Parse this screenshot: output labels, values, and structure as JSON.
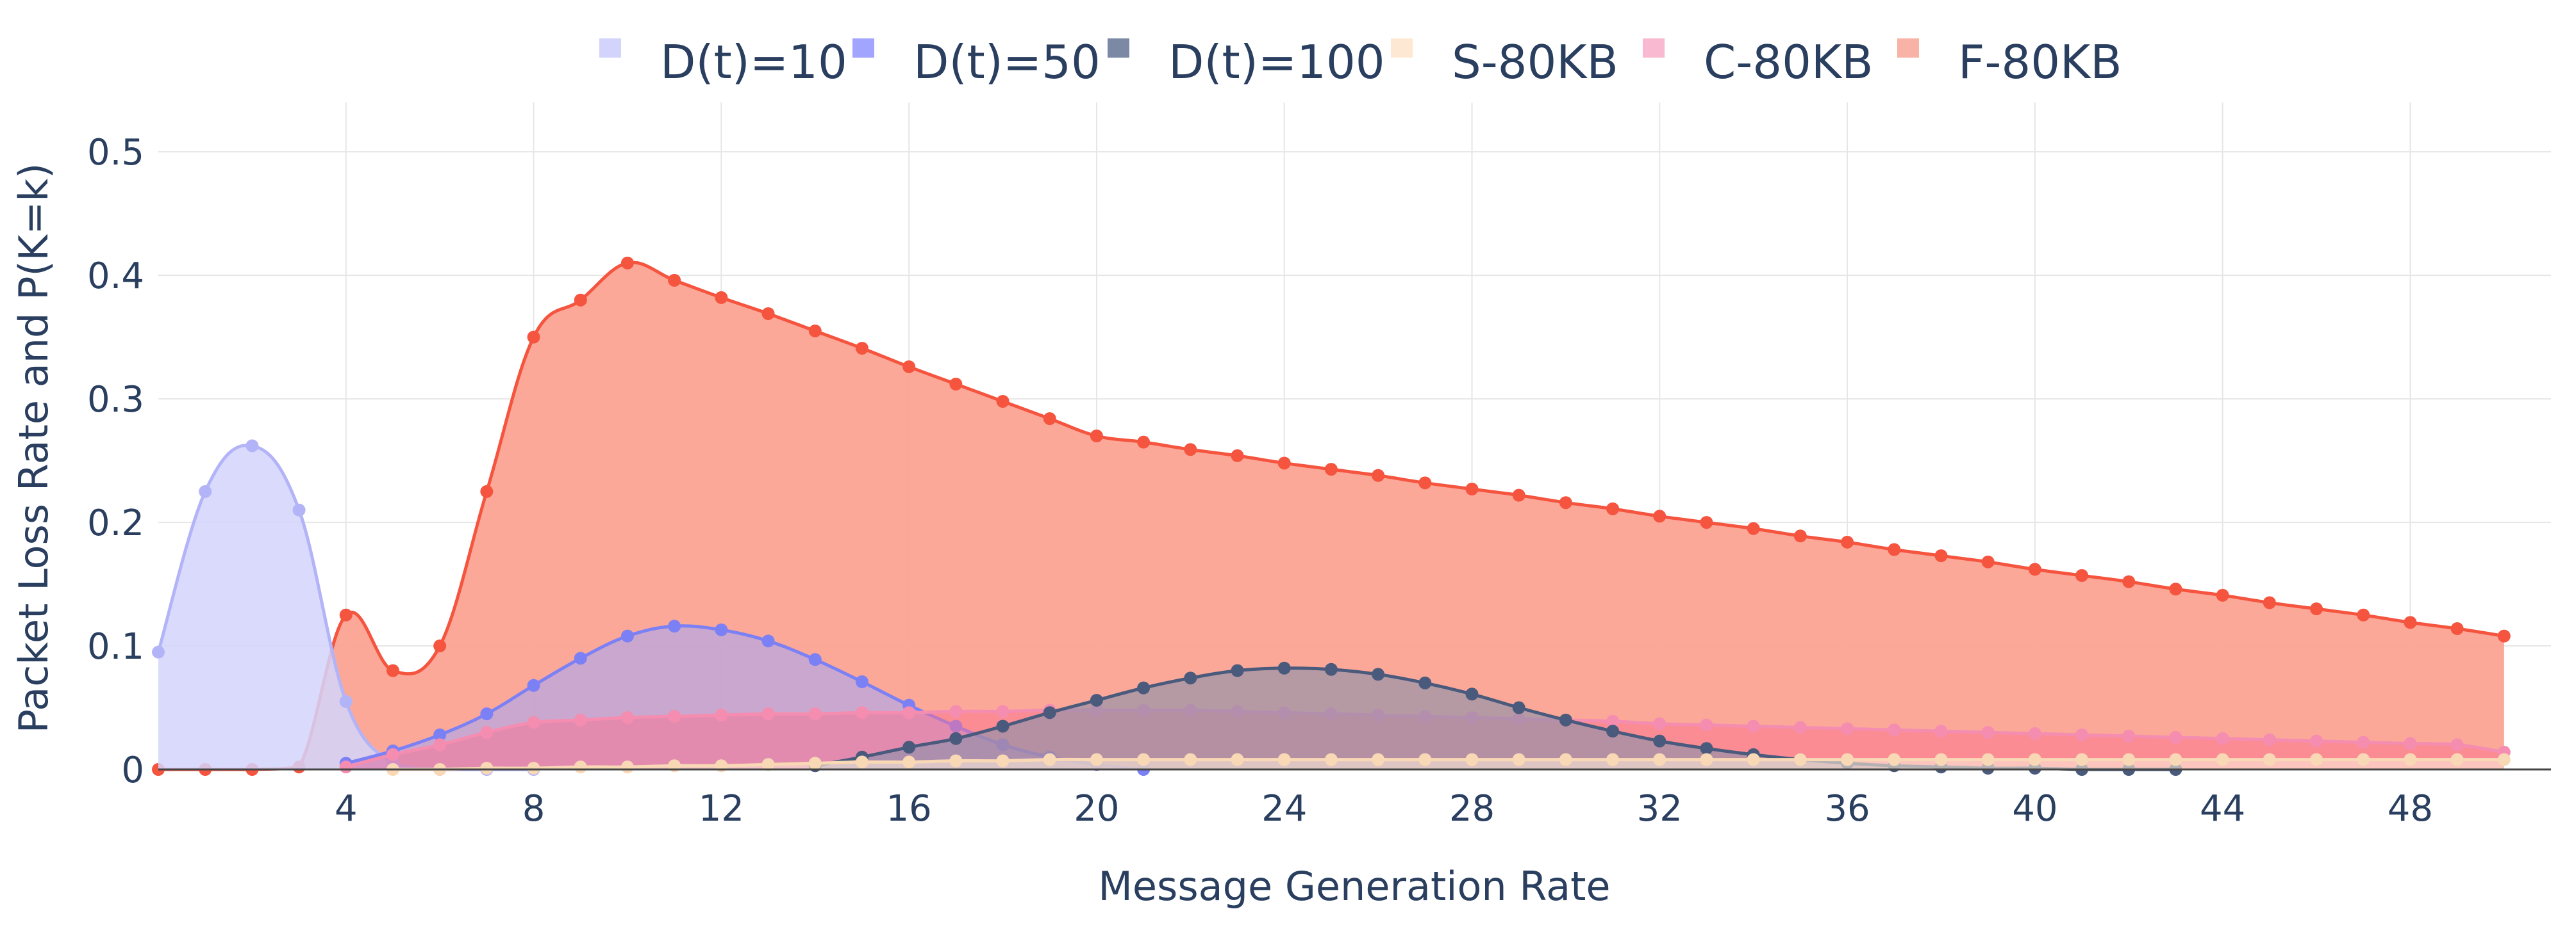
{
  "chart_data": {
    "type": "area",
    "title": "",
    "xlabel": "Message Generation Rate",
    "ylabel": "Packet Loss Rate and P(K=k)",
    "xlim": [
      0,
      51
    ],
    "ylim": [
      0,
      0.54
    ],
    "x_ticks": [
      4,
      8,
      12,
      16,
      20,
      24,
      28,
      32,
      36,
      40,
      44,
      48
    ],
    "x_tick_labels": [
      "4",
      "8",
      "12",
      "16",
      "20",
      "24",
      "28",
      "32",
      "36",
      "40",
      "44",
      "48"
    ],
    "y_ticks": [
      0,
      0.1,
      0.2,
      0.3,
      0.4,
      0.5
    ],
    "y_tick_labels": [
      "0",
      "0.1",
      "0.2",
      "0.3",
      "0.4",
      "0.5"
    ],
    "legend_position": "top-center",
    "series": [
      {
        "name": "D(t)=10",
        "color": "#c8c9fb",
        "fill": "#d4d5fc",
        "line": "#b3b4f7",
        "x": [
          0,
          1,
          2,
          3,
          4,
          5,
          6,
          7,
          8
        ],
        "y": [
          0.095,
          0.225,
          0.262,
          0.21,
          0.055,
          0.005,
          0,
          0,
          0
        ]
      },
      {
        "name": "D(t)=50",
        "color": "#8b8ffc",
        "fill": "#a3a6fb",
        "line": "#7c80f5",
        "x": [
          4,
          5,
          6,
          7,
          8,
          9,
          10,
          11,
          12,
          13,
          14,
          15,
          16,
          17,
          18,
          19,
          20,
          21
        ],
        "y": [
          0.005,
          0.015,
          0.028,
          0.045,
          0.068,
          0.09,
          0.108,
          0.116,
          0.113,
          0.104,
          0.089,
          0.071,
          0.052,
          0.035,
          0.02,
          0.01,
          0.004,
          0
        ]
      },
      {
        "name": "D(t)=100",
        "color": "#5a6b8e",
        "fill": "#8791ab",
        "line": "#4a5a7c",
        "x": [
          14,
          15,
          16,
          17,
          18,
          19,
          20,
          21,
          22,
          23,
          24,
          25,
          26,
          27,
          28,
          29,
          30,
          31,
          32,
          33,
          34,
          35,
          36,
          37,
          38,
          39,
          40,
          41,
          42,
          43
        ],
        "y": [
          0.003,
          0.01,
          0.018,
          0.025,
          0.035,
          0.046,
          0.056,
          0.066,
          0.074,
          0.08,
          0.082,
          0.081,
          0.077,
          0.07,
          0.061,
          0.05,
          0.04,
          0.031,
          0.023,
          0.017,
          0.012,
          0.008,
          0.005,
          0.003,
          0.002,
          0.001,
          0.001,
          0,
          0,
          0
        ]
      },
      {
        "name": "S-80KB",
        "color": "#fde3c8",
        "fill": "#fdebd8",
        "line": "#f9d8b5",
        "x": [
          5,
          6,
          7,
          8,
          9,
          10,
          11,
          12,
          13,
          14,
          15,
          16,
          17,
          18,
          19,
          20,
          21,
          22,
          23,
          24,
          25,
          26,
          27,
          28,
          29,
          30,
          31,
          32,
          33,
          34,
          35,
          36,
          37,
          38,
          39,
          40,
          41,
          42,
          43,
          44,
          45,
          46,
          47,
          48,
          49,
          50
        ],
        "y": [
          0,
          0,
          0.001,
          0.001,
          0.002,
          0.002,
          0.003,
          0.003,
          0.004,
          0.005,
          0.006,
          0.006,
          0.007,
          0.007,
          0.008,
          0.008,
          0.008,
          0.008,
          0.008,
          0.008,
          0.008,
          0.008,
          0.008,
          0.008,
          0.008,
          0.008,
          0.008,
          0.008,
          0.008,
          0.008,
          0.008,
          0.008,
          0.008,
          0.008,
          0.008,
          0.008,
          0.008,
          0.008,
          0.008,
          0.008,
          0.008,
          0.008,
          0.008,
          0.008,
          0.008,
          0.008
        ]
      },
      {
        "name": "C-80KB",
        "color": "#f7a8c4",
        "fill": "#fb6f8f",
        "line": "#f58db0",
        "x": [
          4,
          5,
          6,
          7,
          8,
          9,
          10,
          11,
          12,
          13,
          14,
          15,
          16,
          17,
          18,
          19,
          20,
          21,
          22,
          23,
          24,
          25,
          26,
          27,
          28,
          29,
          30,
          31,
          32,
          33,
          34,
          35,
          36,
          37,
          38,
          39,
          40,
          41,
          42,
          43,
          44,
          45,
          46,
          47,
          48,
          49,
          50
        ],
        "y": [
          0.002,
          0.012,
          0.02,
          0.03,
          0.038,
          0.04,
          0.042,
          0.043,
          0.044,
          0.045,
          0.045,
          0.046,
          0.046,
          0.047,
          0.047,
          0.048,
          0.048,
          0.048,
          0.048,
          0.047,
          0.046,
          0.045,
          0.044,
          0.043,
          0.042,
          0.041,
          0.04,
          0.039,
          0.037,
          0.036,
          0.035,
          0.034,
          0.033,
          0.032,
          0.031,
          0.03,
          0.029,
          0.028,
          0.027,
          0.026,
          0.025,
          0.024,
          0.023,
          0.022,
          0.021,
          0.02,
          0.014
        ]
      },
      {
        "name": "F-80KB",
        "color": "#f7a090",
        "fill": "#fba394",
        "line": "#f5543f",
        "x": [
          0,
          1,
          2,
          3,
          4,
          5,
          6,
          7,
          8,
          9,
          10,
          11,
          12,
          13,
          14,
          15,
          16,
          17,
          18,
          19,
          20,
          21,
          22,
          23,
          24,
          25,
          26,
          27,
          28,
          29,
          30,
          31,
          32,
          33,
          34,
          35,
          36,
          37,
          38,
          39,
          40,
          41,
          42,
          43,
          44,
          45,
          46,
          47,
          48,
          49,
          50
        ],
        "y": [
          0,
          0,
          0,
          0.002,
          0.125,
          0.08,
          0.1,
          0.225,
          0.35,
          0.38,
          0.41,
          0.396,
          0.382,
          0.369,
          0.355,
          0.341,
          0.326,
          0.312,
          0.298,
          0.284,
          0.27,
          0.265,
          0.259,
          0.254,
          0.248,
          0.243,
          0.238,
          0.232,
          0.227,
          0.222,
          0.216,
          0.211,
          0.205,
          0.2,
          0.195,
          0.189,
          0.184,
          0.178,
          0.173,
          0.168,
          0.162,
          0.157,
          0.152,
          0.146,
          0.141,
          0.135,
          0.13,
          0.125,
          0.119,
          0.114,
          0.108
        ]
      }
    ]
  }
}
